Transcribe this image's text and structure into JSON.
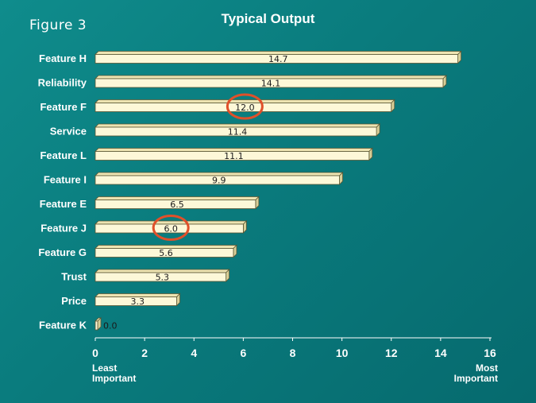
{
  "figure_label": "Figure 3",
  "chart_data": {
    "type": "bar",
    "orientation": "horizontal",
    "title": "Typical Output",
    "categories": [
      "Feature H",
      "Reliability",
      "Feature F",
      "Service",
      "Feature L",
      "Feature I",
      "Feature E",
      "Feature J",
      "Feature G",
      "Trust",
      "Price",
      "Feature K"
    ],
    "values": [
      14.7,
      14.1,
      12.0,
      11.4,
      11.1,
      9.9,
      6.5,
      6.0,
      5.6,
      5.3,
      3.3,
      0.0
    ],
    "data_labels": [
      "14.7",
      "14.1",
      "12.0",
      "11.4",
      "11.1",
      "9.9",
      "6.5",
      "6.0",
      "5.6",
      "5.3",
      "3.3",
      "0.0"
    ],
    "xlim": [
      0,
      16
    ],
    "xticks": [
      0,
      2,
      4,
      6,
      8,
      10,
      12,
      14,
      16
    ],
    "xlabel_left": [
      "Least",
      "Important"
    ],
    "xlabel_right": [
      "Most",
      "Important"
    ],
    "grid": false,
    "highlighted_labels": [
      "12.0",
      "6.0"
    ],
    "colors": {
      "bar_face": "#fdf8d8",
      "bar_top": "#ede4b2",
      "bar_side": "#d8cf98",
      "bar_edge": "#5a5632",
      "highlight_circle": "#e0502a",
      "text": "#ffffff",
      "bar_text": "#1a1a1a"
    }
  }
}
